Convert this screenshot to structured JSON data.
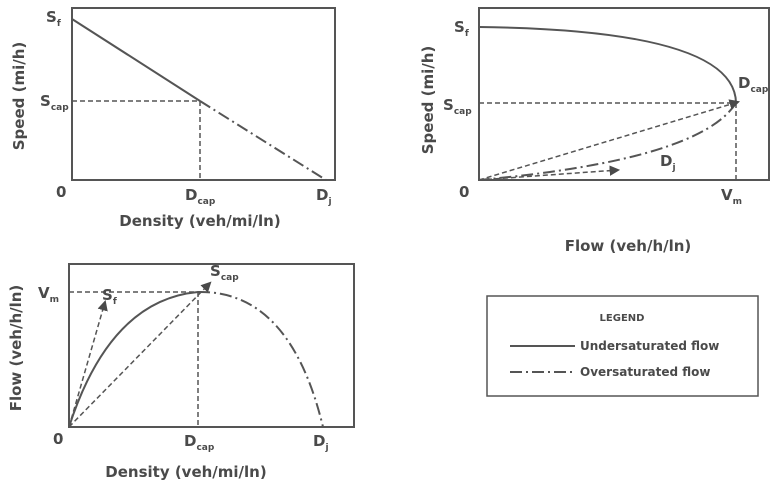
{
  "panels": {
    "speed_density": {
      "y_axis": "Speed (mi/h)",
      "x_axis": "Density (veh/mi/ln)",
      "origin": "0",
      "labels": {
        "sf": {
          "main": "S",
          "sub": "f"
        },
        "scap": {
          "main": "S",
          "sub": "cap"
        },
        "dcap": {
          "main": "D",
          "sub": "cap"
        },
        "dj": {
          "main": "D",
          "sub": "j"
        }
      }
    },
    "speed_flow": {
      "y_axis": "Speed (mi/h)",
      "x_axis": "Flow (veh/h/ln)",
      "origin": "0",
      "labels": {
        "sf": {
          "main": "S",
          "sub": "f"
        },
        "scap": {
          "main": "S",
          "sub": "cap"
        },
        "dcap": {
          "main": "D",
          "sub": "cap"
        },
        "dj": {
          "main": "D",
          "sub": "j"
        },
        "vm": {
          "main": "V",
          "sub": "m"
        }
      }
    },
    "flow_density": {
      "y_axis": "Flow (veh/h/ln)",
      "x_axis": "Density (veh/mi/ln)",
      "origin": "0",
      "labels": {
        "vm": {
          "main": "V",
          "sub": "m"
        },
        "sf": {
          "main": "S",
          "sub": "f"
        },
        "scap": {
          "main": "S",
          "sub": "cap"
        },
        "dcap": {
          "main": "D",
          "sub": "cap"
        },
        "dj": {
          "main": "D",
          "sub": "j"
        }
      }
    }
  },
  "legend": {
    "title": "LEGEND",
    "items": [
      {
        "label": "Undersaturated flow",
        "style": "solid"
      },
      {
        "label": "Oversaturated flow",
        "style": "dash-dot"
      }
    ]
  },
  "colors": {
    "ink": "#4a4a4a"
  }
}
